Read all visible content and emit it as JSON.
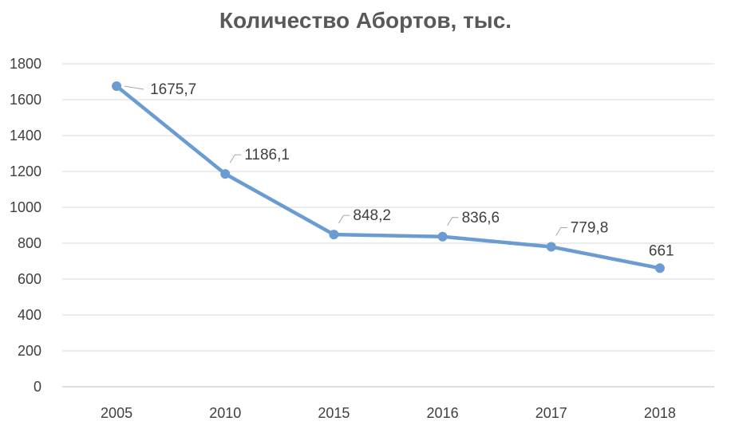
{
  "chart_data": {
    "type": "line",
    "title": "Количество Абортов, тыс.",
    "categories": [
      "2005",
      "2010",
      "2015",
      "2016",
      "2017",
      "2018"
    ],
    "series": [
      {
        "values": [
          1675.7,
          1186.1,
          848.2,
          836.6,
          779.8,
          661
        ],
        "labels": [
          "1675,7",
          "1186,1",
          "848,2",
          "836,6",
          "779,8",
          "661"
        ],
        "color": "#6a9bd1"
      }
    ],
    "ylim": [
      0,
      1800
    ],
    "yticks": [
      0,
      200,
      400,
      600,
      800,
      1000,
      1200,
      1400,
      1600,
      1800
    ],
    "grid": true,
    "legend": "none"
  }
}
